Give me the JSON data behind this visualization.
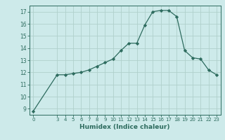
{
  "x": [
    0,
    3,
    4,
    5,
    6,
    7,
    8,
    9,
    10,
    11,
    12,
    13,
    14,
    15,
    16,
    17,
    18,
    19,
    20,
    21,
    22,
    23
  ],
  "y": [
    8.8,
    11.8,
    11.8,
    11.9,
    12.0,
    12.2,
    12.5,
    12.8,
    13.1,
    13.8,
    14.4,
    14.4,
    15.9,
    17.0,
    17.1,
    17.1,
    16.6,
    13.8,
    13.2,
    13.1,
    12.2,
    11.8
  ],
  "line_color": "#2d6b5e",
  "marker_color": "#2d6b5e",
  "bg_color": "#cdeaea",
  "grid_color": "#b0d0cc",
  "xlabel": "Humidex (Indice chaleur)",
  "ylim": [
    8.5,
    17.5
  ],
  "xlim": [
    -0.5,
    23.5
  ],
  "yticks": [
    9,
    10,
    11,
    12,
    13,
    14,
    15,
    16,
    17
  ],
  "xticks": [
    0,
    3,
    4,
    5,
    6,
    7,
    8,
    9,
    10,
    11,
    12,
    13,
    14,
    15,
    16,
    17,
    18,
    19,
    20,
    21,
    22,
    23
  ]
}
